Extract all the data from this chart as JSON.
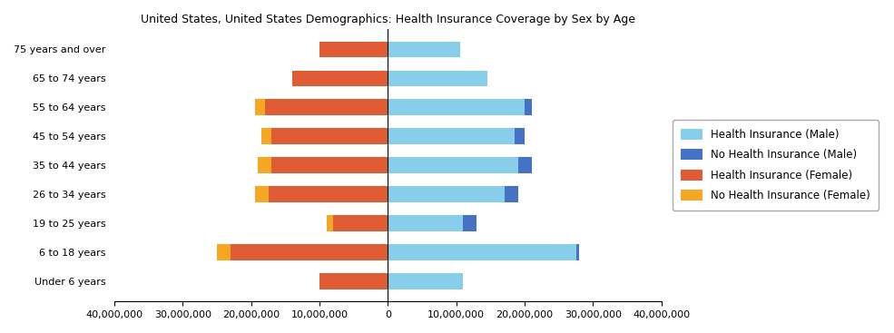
{
  "title": "United States, United States Demographics: Health Insurance Coverage by Sex by Age",
  "age_groups": [
    "Under 6 years",
    "6 to 18 years",
    "19 to 25 years",
    "26 to 34 years",
    "35 to 44 years",
    "45 to 54 years",
    "55 to 64 years",
    "65 to 74 years",
    "75 years and over"
  ],
  "health_ins_male": [
    11000000,
    27500000,
    11000000,
    17000000,
    19000000,
    18500000,
    20000000,
    14500000,
    10500000
  ],
  "no_health_ins_male": [
    0,
    500000,
    2000000,
    2000000,
    2000000,
    1500000,
    1000000,
    0,
    0
  ],
  "health_ins_female": [
    10000000,
    23000000,
    8000000,
    17500000,
    17000000,
    17000000,
    18000000,
    14000000,
    10000000
  ],
  "no_health_ins_female": [
    0,
    2000000,
    1000000,
    2000000,
    2000000,
    1500000,
    1500000,
    0,
    0
  ],
  "color_hi_male": "#87CEEB",
  "color_no_hi_male": "#4472C4",
  "color_hi_female": "#E05C35",
  "color_no_hi_female": "#F5A623",
  "xlim": 40000000,
  "figsize": [
    9.85,
    3.67
  ],
  "dpi": 100
}
